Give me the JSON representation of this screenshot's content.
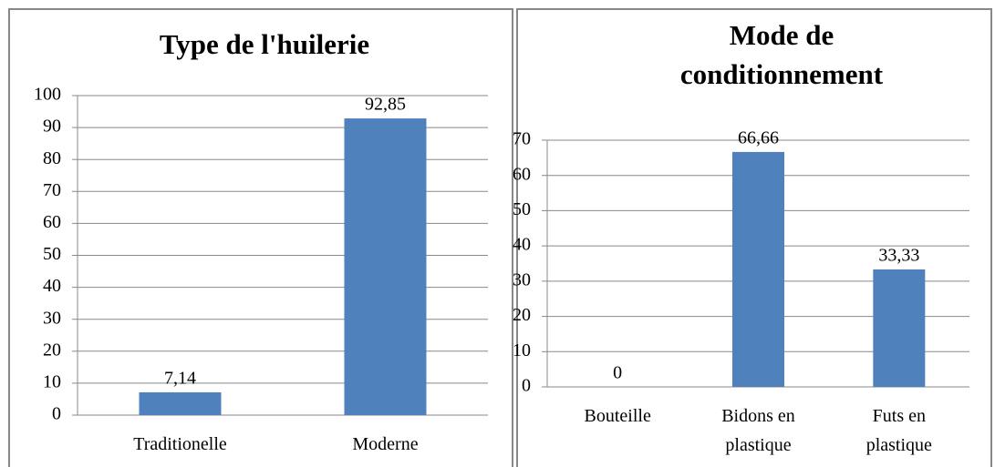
{
  "chart_data": [
    {
      "type": "bar",
      "title": "Type de l'huilerie",
      "categories": [
        "Traditionelle",
        "Moderne"
      ],
      "values": [
        7.14,
        92.85
      ],
      "value_labels": [
        "7,14",
        "92,85"
      ],
      "color": "#4f81bd",
      "ylim": [
        0,
        100
      ],
      "yticks": [
        0,
        10,
        20,
        30,
        40,
        50,
        60,
        70,
        80,
        90,
        100
      ],
      "grid": true
    },
    {
      "type": "bar",
      "title": "Mode de conditionnement",
      "categories": [
        "Bouteille",
        "Bidons en plastique",
        "Futs en plastique"
      ],
      "values": [
        0,
        66.66,
        33.33
      ],
      "value_labels": [
        "0",
        "66,66",
        "33,33"
      ],
      "color": "#4f81bd",
      "ylim": [
        0,
        70
      ],
      "yticks": [
        0,
        10,
        20,
        30,
        40,
        50,
        60,
        70
      ],
      "grid": true
    }
  ]
}
